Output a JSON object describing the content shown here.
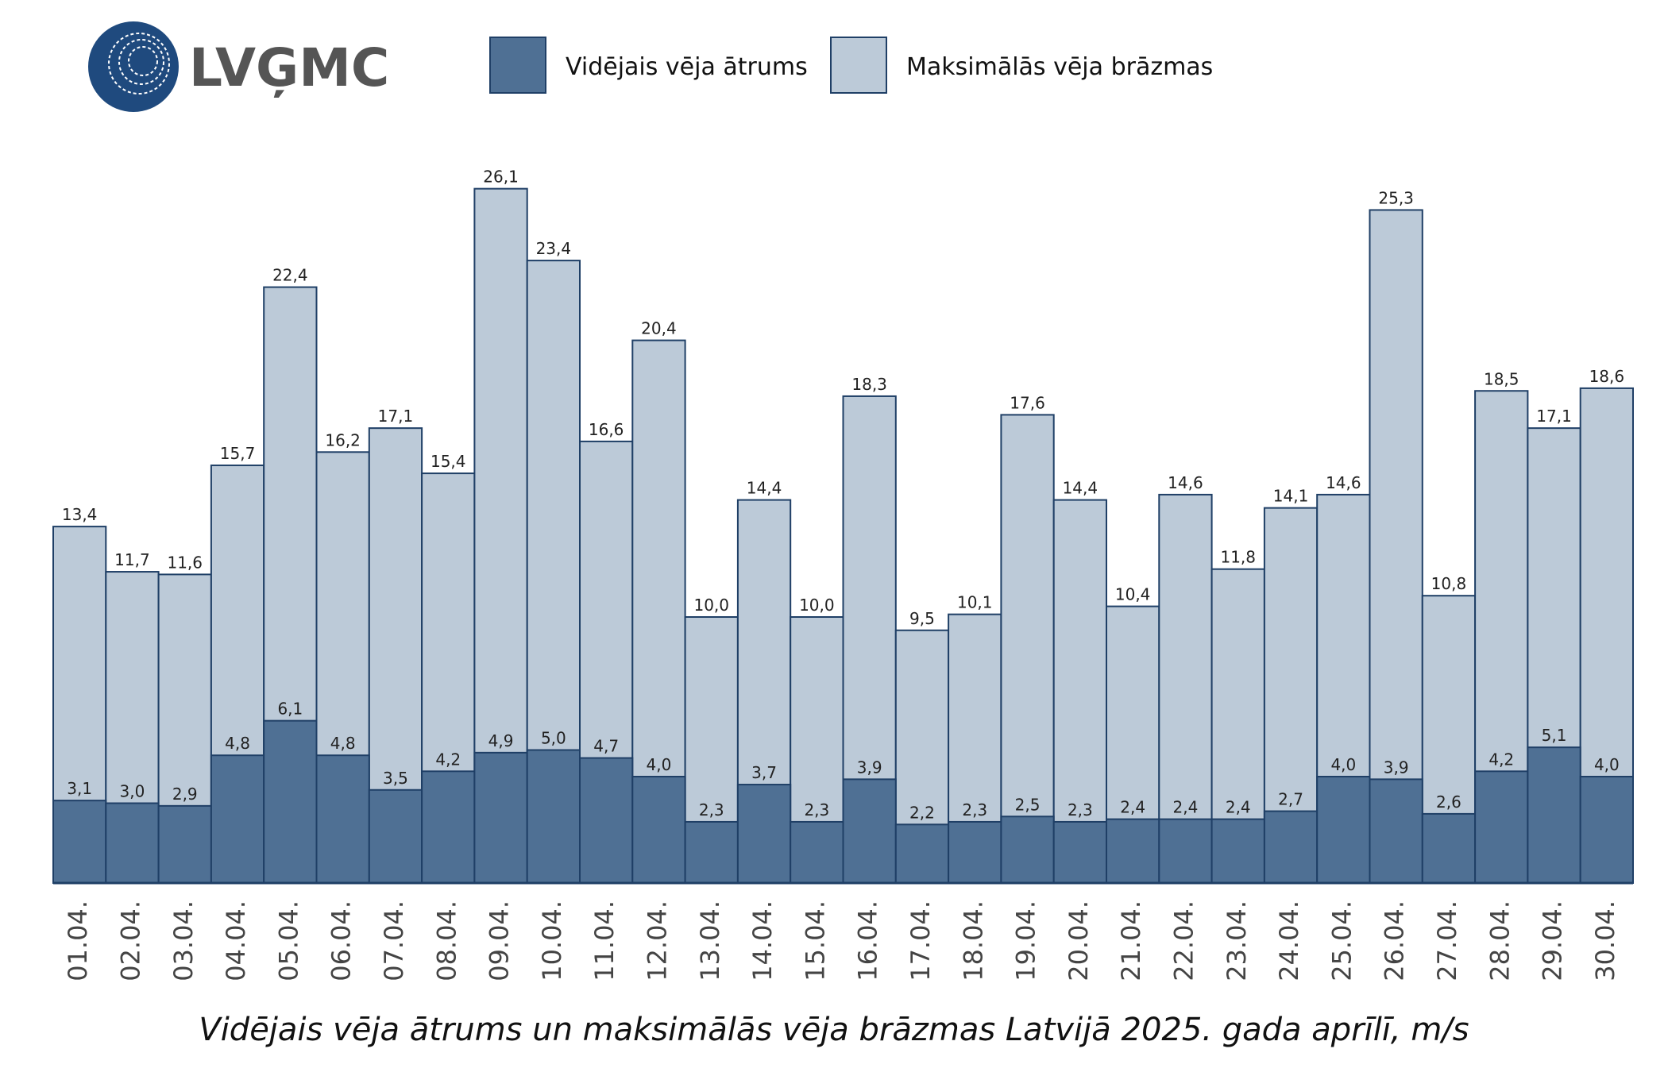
{
  "logo": "LVĢMC",
  "chart_data": {
    "type": "bar",
    "barmode": "overlay",
    "title": "Vidējais vēja ātrums un maksimālās vēja brāzmas Latvijā 2025. gada aprīlī, m/s",
    "categories": [
      "01.04.",
      "02.04.",
      "03.04.",
      "04.04.",
      "05.04.",
      "06.04.",
      "07.04.",
      "08.04.",
      "09.04.",
      "10.04.",
      "11.04.",
      "12.04.",
      "13.04.",
      "14.04.",
      "15.04.",
      "16.04.",
      "17.04.",
      "18.04.",
      "19.04.",
      "20.04.",
      "21.04.",
      "22.04.",
      "23.04.",
      "24.04.",
      "25.04.",
      "26.04.",
      "27.04.",
      "28.04.",
      "29.04.",
      "30.04."
    ],
    "series": [
      {
        "name": "Vidējais vēja ātrums",
        "color": "#4f7094",
        "values": [
          3.1,
          3.0,
          2.9,
          4.8,
          6.1,
          4.8,
          3.5,
          4.2,
          4.9,
          5.0,
          4.7,
          4.0,
          2.3,
          3.7,
          2.3,
          3.9,
          2.2,
          2.3,
          2.5,
          2.3,
          2.4,
          2.4,
          2.4,
          2.7,
          4.0,
          3.9,
          2.6,
          4.2,
          5.1,
          4.0
        ],
        "value_labels": [
          "3,1",
          "3,0",
          "2,9",
          "4,8",
          "6,1",
          "4,8",
          "3,5",
          "4,2",
          "4,9",
          "5,0",
          "4,7",
          "4,0",
          "2,3",
          "3,7",
          "2,3",
          "3,9",
          "2,2",
          "2,3",
          "2,5",
          "2,3",
          "2,4",
          "2,4",
          "2,4",
          "2,7",
          "4,0",
          "3,9",
          "2,6",
          "4,2",
          "5,1",
          "4,0"
        ]
      },
      {
        "name": "Maksimālās vēja brāzmas",
        "color": "#bccad8",
        "values": [
          13.4,
          11.7,
          11.6,
          15.7,
          22.4,
          16.2,
          17.1,
          15.4,
          26.1,
          23.4,
          16.6,
          20.4,
          10.0,
          14.4,
          10.0,
          18.3,
          9.5,
          10.1,
          17.6,
          14.4,
          10.4,
          14.6,
          11.8,
          14.1,
          14.6,
          25.3,
          10.8,
          18.5,
          17.1,
          18.6
        ],
        "value_labels": [
          "13,4",
          "11,7",
          "11,6",
          "15,7",
          "22,4",
          "16,2",
          "17,1",
          "15,4",
          "26,1",
          "23,4",
          "16,6",
          "20,4",
          "10,0",
          "14,4",
          "10,0",
          "18,3",
          "9,5",
          "10,1",
          "17,6",
          "14,4",
          "10,4",
          "14,6",
          "11,8",
          "14,1",
          "14,6",
          "25,3",
          "10,8",
          "18,5",
          "17,1",
          "18,6"
        ]
      }
    ]
  }
}
